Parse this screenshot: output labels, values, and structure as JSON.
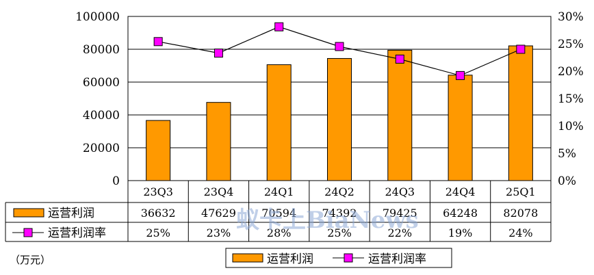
{
  "chart_data": {
    "type": "bar",
    "categories": [
      "23Q3",
      "23Q4",
      "24Q1",
      "24Q2",
      "24Q3",
      "24Q4",
      "25Q1"
    ],
    "series": [
      {
        "name": "运营利润",
        "kind": "bar",
        "axis": "left",
        "color": "#ff9900",
        "values": [
          36632,
          47629,
          70594,
          74392,
          79425,
          64248,
          82078
        ],
        "labels": [
          "36632",
          "47629",
          "70594",
          "74392",
          "79425",
          "64248",
          "82078"
        ]
      },
      {
        "name": "运营利润率",
        "kind": "line",
        "axis": "right",
        "color": "#ff00ff",
        "values": [
          25.4,
          23.3,
          28.1,
          24.5,
          22.2,
          19.2,
          24.0
        ],
        "labels": [
          "25%",
          "23%",
          "28%",
          "25%",
          "22%",
          "19%",
          "24%"
        ]
      }
    ],
    "y_left": {
      "ylim": [
        0,
        100000
      ],
      "ticks": [
        "0",
        "20000",
        "40000",
        "60000",
        "80000",
        "100000"
      ]
    },
    "y_right": {
      "ylim": [
        0,
        30
      ],
      "ticks": [
        "0%",
        "5%",
        "10%",
        "15%",
        "20%",
        "25%",
        "30%"
      ]
    },
    "grid": true,
    "legend_position": "bottom"
  },
  "unit": "（万元）",
  "watermark": "蚁卡上BiaNews"
}
